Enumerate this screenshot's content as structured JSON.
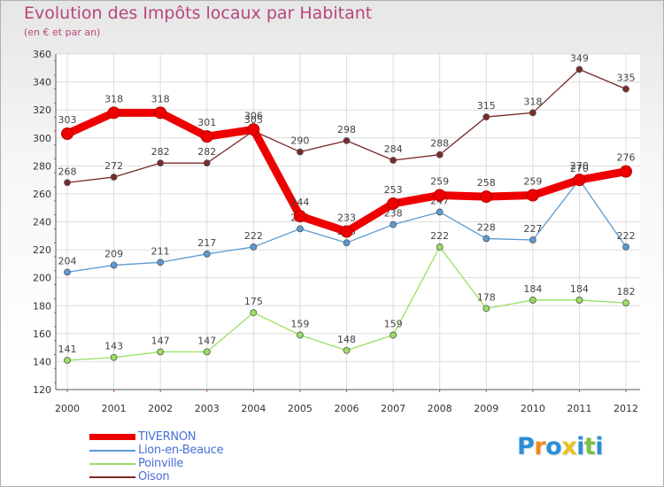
{
  "header": {
    "title": "Evolution des Impôts locaux par Habitant",
    "subtitle": "(en € et par an)"
  },
  "chart_data": {
    "type": "line",
    "x": [
      2000,
      2001,
      2002,
      2003,
      2004,
      2005,
      2006,
      2007,
      2008,
      2009,
      2010,
      2011,
      2012
    ],
    "ylim": [
      120,
      360
    ],
    "yticks": [
      120,
      140,
      160,
      180,
      200,
      220,
      240,
      260,
      280,
      300,
      320,
      340,
      360
    ],
    "grid": true,
    "legend_position": "bottom-left",
    "series": [
      {
        "name": "TIVERNON",
        "color": "#ee0000",
        "emphasis": true,
        "values": [
          303,
          318,
          318,
          301,
          306,
          244,
          233,
          253,
          259,
          258,
          259,
          270,
          276
        ]
      },
      {
        "name": "Lion-en-Beauce",
        "color": "#5b9bd5",
        "values": [
          204,
          209,
          211,
          217,
          222,
          235,
          225,
          238,
          247,
          228,
          227,
          270,
          222
        ]
      },
      {
        "name": "Poinville",
        "color": "#99e060",
        "values": [
          141,
          143,
          147,
          147,
          175,
          159,
          148,
          159,
          222,
          178,
          184,
          184,
          182
        ]
      },
      {
        "name": "Oison",
        "color": "#7a2a2a",
        "values": [
          268,
          272,
          282,
          282,
          305,
          290,
          298,
          284,
          288,
          315,
          318,
          349,
          335
        ]
      }
    ]
  },
  "logo": {
    "letters": [
      "P",
      "r",
      "o",
      "x",
      "i",
      "t",
      "i"
    ],
    "colors": [
      "#2a8fd8",
      "#f08a1c",
      "#2a8fd8",
      "#e8c020",
      "#2a8fd8",
      "#7ac143",
      "#2a8fd8"
    ]
  }
}
